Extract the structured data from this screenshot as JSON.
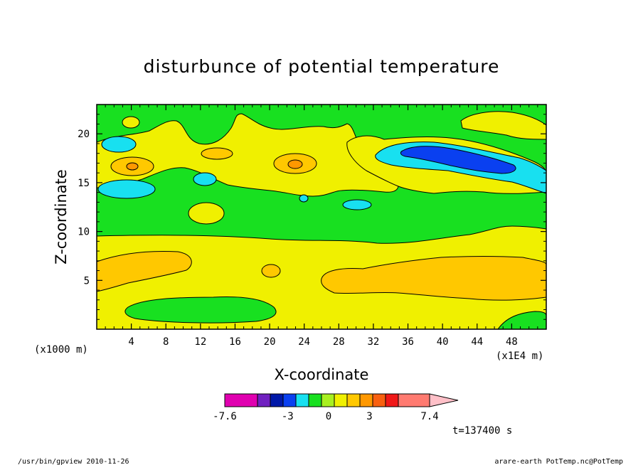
{
  "chart_data": {
    "type": "contour",
    "title": "disturbunce of potential temperature",
    "xlabel": "X-coordinate",
    "ylabel": "Z-coordinate",
    "x_unit_left": "(x1000 m)",
    "x_unit_right": "(x1E4 m)",
    "xlim": [
      0,
      52
    ],
    "ylim": [
      0,
      23
    ],
    "xticks": [
      4,
      8,
      12,
      16,
      20,
      24,
      28,
      32,
      36,
      40,
      44,
      48
    ],
    "yticks": [
      5,
      10,
      15,
      20
    ],
    "colorbar": {
      "colors": [
        "#e000b0",
        "#7020c0",
        "#0018a8",
        "#0a40f0",
        "#18e0f0",
        "#18e020",
        "#a8f020",
        "#f0f000",
        "#ffc800",
        "#ff9800",
        "#f86010",
        "#f01818",
        "#ff7a70",
        "#ffc0c8"
      ],
      "labels": [
        "-7.6",
        "-3",
        "0",
        "3",
        "7.4"
      ],
      "label_values": [
        -7.6,
        -3,
        0,
        3,
        7.4
      ]
    },
    "time_label": "t=137400 s",
    "layers": [
      {
        "name": "background",
        "color": "#18e020"
      },
      {
        "name": "lower-yellow",
        "color": "#f0f000"
      },
      {
        "name": "lower-left-orange",
        "color": "#ffc800"
      },
      {
        "name": "lower-right-orange",
        "color": "#ffc800"
      },
      {
        "name": "bottom-green",
        "color": "#18e020"
      },
      {
        "name": "upper-yellow",
        "color": "#f0f000"
      },
      {
        "name": "upper-orange",
        "color": "#ffc800"
      },
      {
        "name": "cyan",
        "color": "#18e0f0"
      },
      {
        "name": "blue",
        "color": "#0a40f0"
      }
    ]
  },
  "footer": {
    "left": "/usr/bin/gpview   2010-11-26",
    "right": "arare-earth_PotTemp.nc@PotTemp"
  }
}
